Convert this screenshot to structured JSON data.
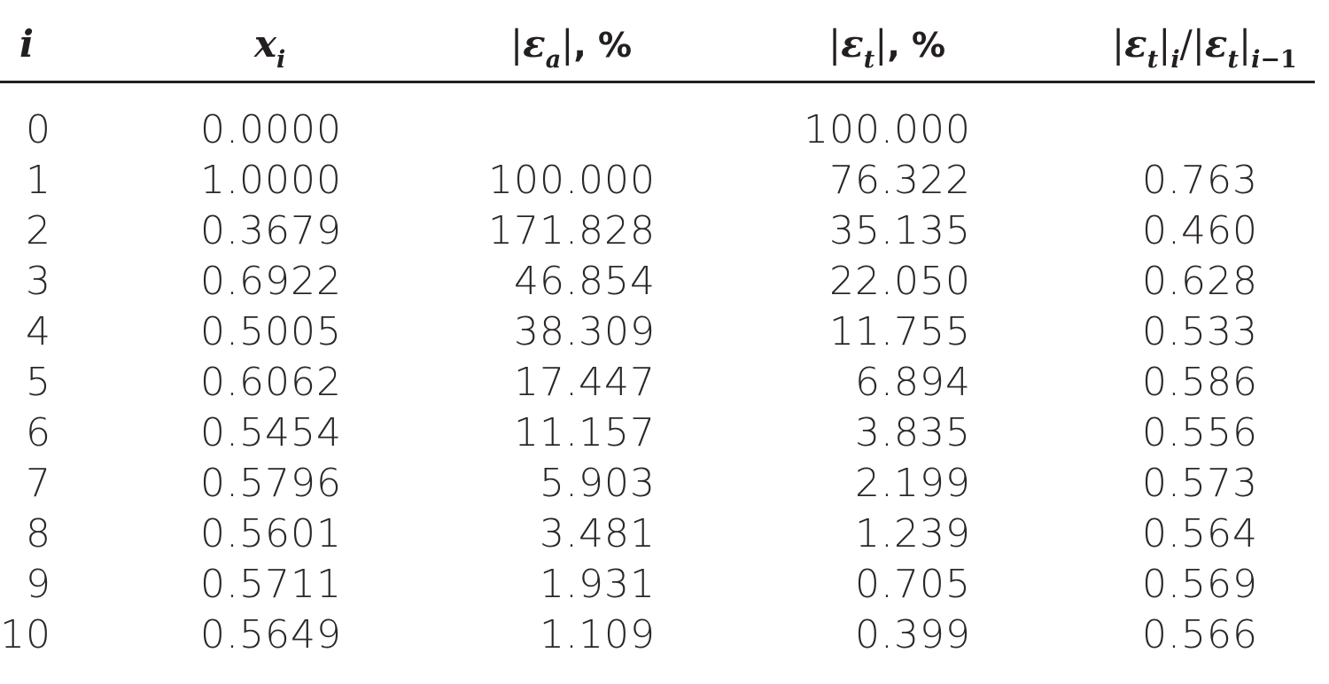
{
  "table": {
    "headers": {
      "i": "i",
      "x": "x",
      "x_sub": "i",
      "ea_bar_open": "|",
      "ea_symbol": "ε",
      "ea_sub": "a",
      "ea_bar_close": "|",
      "ea_suffix": ", %",
      "et_bar_open": "|",
      "et_symbol": "ε",
      "et_sub": "t",
      "et_bar_close": "|",
      "et_suffix": ", %",
      "ratio_bar1": "|",
      "ratio_sym1": "ε",
      "ratio_sub1": "t",
      "ratio_bar2": "|",
      "ratio_sub2": "i",
      "ratio_slash": "/",
      "ratio_bar3": "|",
      "ratio_sym2": "ε",
      "ratio_sub3": "t",
      "ratio_bar4": "|",
      "ratio_sub4_i": "i",
      "ratio_sub4_rest": "−1"
    },
    "rows": [
      {
        "i": "0",
        "x": "0.0000",
        "ea": "",
        "et": "100.000",
        "ratio": ""
      },
      {
        "i": "1",
        "x": "1.0000",
        "ea": "100.000",
        "et": "76.322",
        "ratio": "0.763"
      },
      {
        "i": "2",
        "x": "0.3679",
        "ea": "171.828",
        "et": "35.135",
        "ratio": "0.460"
      },
      {
        "i": "3",
        "x": "0.6922",
        "ea": "46.854",
        "et": "22.050",
        "ratio": "0.628"
      },
      {
        "i": "4",
        "x": "0.5005",
        "ea": "38.309",
        "et": "11.755",
        "ratio": "0.533"
      },
      {
        "i": "5",
        "x": "0.6062",
        "ea": "17.447",
        "et": "6.894",
        "ratio": "0.586"
      },
      {
        "i": "6",
        "x": "0.5454",
        "ea": "11.157",
        "et": "3.835",
        "ratio": "0.556"
      },
      {
        "i": "7",
        "x": "0.5796",
        "ea": "5.903",
        "et": "2.199",
        "ratio": "0.573"
      },
      {
        "i": "8",
        "x": "0.5601",
        "ea": "3.481",
        "et": "1.239",
        "ratio": "0.564"
      },
      {
        "i": "9",
        "x": "0.5711",
        "ea": "1.931",
        "et": "0.705",
        "ratio": "0.569"
      },
      {
        "i": "10",
        "x": "0.5649",
        "ea": "1.109",
        "et": "0.399",
        "ratio": "0.566"
      }
    ]
  }
}
